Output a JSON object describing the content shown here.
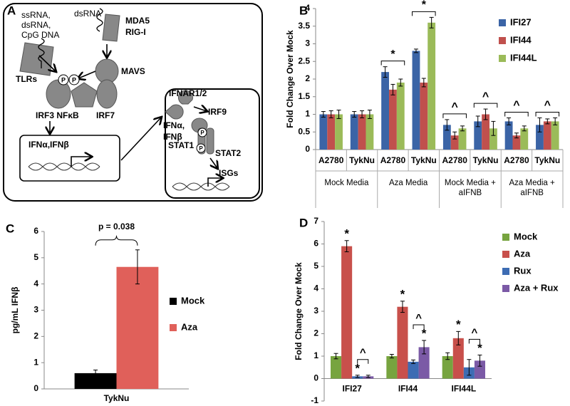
{
  "diagram": {
    "panel": "A",
    "labels": [
      "ssRNA,",
      "dsRNA,",
      "CpG DNA",
      "dsRNA",
      "MDA5",
      "RIG-I",
      "TLRs",
      "MAVS",
      "P",
      "P",
      "IRF3 NFκB",
      "IRF7",
      "IFNα,IFNβ",
      "IFNAR1/2",
      "IFNα,",
      "IFNβ",
      "IRF9",
      "STAT1",
      "P",
      "P",
      "STAT2",
      "ISGs"
    ]
  },
  "chart_data": [
    {
      "type": "bar",
      "panel": "B",
      "y_label": "Fold Change Over Mock",
      "categories": [
        "A2780",
        "TykNu",
        "A2780",
        "TykNu",
        "A2780",
        "TykNu",
        "A2780",
        "TykNu"
      ],
      "groups": [
        "Mock Media",
        "Aza Media",
        "Mock Media + aIFNB",
        "Aza Media + aIFNB"
      ],
      "series": [
        {
          "name": "IFI27",
          "color": "#3b64a6",
          "values": [
            1,
            1,
            2.2,
            2.8,
            0.7,
            0.8,
            0.8,
            0.7
          ],
          "errors": [
            0.08,
            0.08,
            0.15,
            0.05,
            0.15,
            0.15,
            0.1,
            0.2
          ]
        },
        {
          "name": "IFI44",
          "color": "#c0504d",
          "values": [
            1,
            1,
            1.7,
            1.9,
            0.4,
            1.0,
            0.4,
            0.8
          ],
          "errors": [
            0.1,
            0.1,
            0.15,
            0.12,
            0.1,
            0.15,
            0.07,
            0.07
          ]
        },
        {
          "name": "IFI44L",
          "color": "#9bbb59",
          "values": [
            1,
            1,
            1.9,
            3.6,
            0.6,
            0.6,
            0.6,
            0.8
          ],
          "errors": [
            0.12,
            0.12,
            0.1,
            0.15,
            0.07,
            0.2,
            0.07,
            0.1
          ]
        }
      ],
      "annotations": [
        null,
        null,
        "*",
        "*",
        "^",
        "^",
        "^",
        "^"
      ],
      "ylim": [
        0,
        4
      ],
      "yticks": [
        0,
        0.5,
        1,
        1.5,
        2,
        2.5,
        3,
        3.5,
        4
      ]
    },
    {
      "type": "bar",
      "panel": "C",
      "y_label": "pg/mL IFNβ",
      "annotation": "p = 0.038",
      "categories": [
        "TykNu"
      ],
      "series": [
        {
          "name": "Mock",
          "color": "#000000",
          "values": [
            0.6
          ],
          "errors": [
            0.12
          ]
        },
        {
          "name": "Aza",
          "color": "#e0605a",
          "values": [
            4.65
          ],
          "errors": [
            0.65
          ]
        }
      ],
      "ylim": [
        0,
        6
      ],
      "yticks": [
        0,
        1,
        2,
        3,
        4,
        5,
        6
      ]
    },
    {
      "type": "bar",
      "panel": "D",
      "y_label": "Fold Change Over Mock",
      "categories": [
        "IFI27",
        "IFI44",
        "IFI44L"
      ],
      "series": [
        {
          "name": "Mock",
          "color": "#77a43f",
          "values": [
            1.0,
            1.0,
            1.0
          ],
          "errors": [
            0.12,
            0.08,
            0.15
          ]
        },
        {
          "name": "Aza",
          "color": "#c8504b",
          "values": [
            5.9,
            3.2,
            1.8
          ],
          "errors": [
            0.25,
            0.25,
            0.3
          ],
          "annotations": [
            "*",
            "*",
            "*"
          ]
        },
        {
          "name": "Rux",
          "color": "#3d6cb3",
          "values": [
            0.1,
            0.75,
            0.5
          ],
          "errors": [
            0.05,
            0.08,
            0.35
          ],
          "annotations": [
            "*",
            null,
            null
          ]
        },
        {
          "name": "Aza + Rux",
          "color": "#7b5aa6",
          "values": [
            0.1,
            1.4,
            0.8
          ],
          "errors": [
            0.05,
            0.3,
            0.25
          ],
          "annotations": [
            null,
            "*",
            "*"
          ]
        }
      ],
      "bracket_annotations": [
        "^",
        "^",
        "^"
      ],
      "ylim": [
        -1,
        7
      ],
      "yticks": [
        -1,
        0,
        1,
        2,
        3,
        4,
        5,
        6,
        7
      ]
    }
  ]
}
